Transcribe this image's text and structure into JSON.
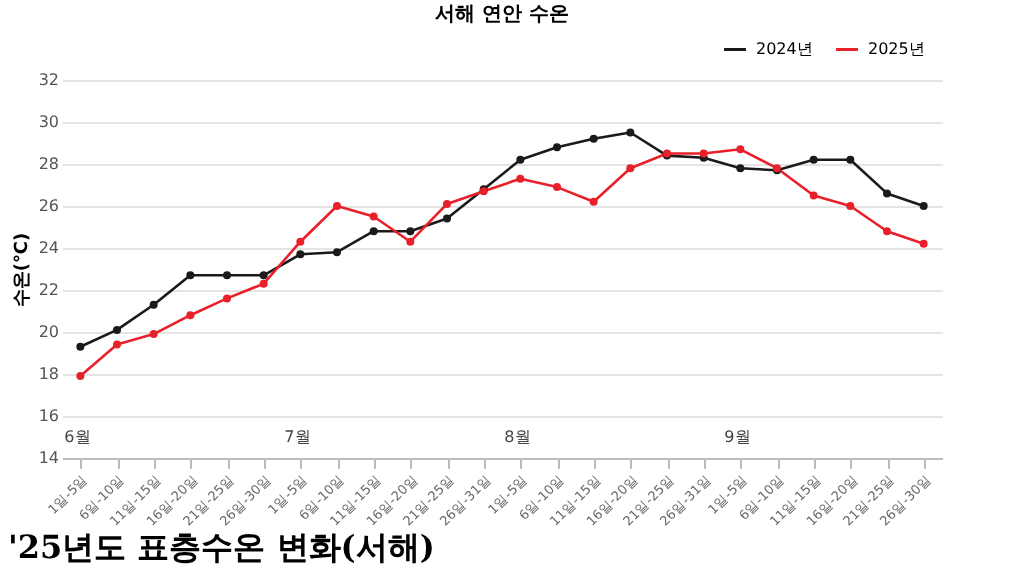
{
  "chart_data": {
    "type": "line",
    "title": "서해 연안 수온",
    "ylabel": "수온(℃)",
    "categories": [
      "1일-5일",
      "6일-10일",
      "11일-15일",
      "16일-20일",
      "21일-25일",
      "26일-30일",
      "1일-5일",
      "6일-10일",
      "11일-15일",
      "16일-20일",
      "21일-25일",
      "26일-31일",
      "1일-5일",
      "6일-10일",
      "11일-15일",
      "16일-20일",
      "21일-25일",
      "26일-31일",
      "1일-5일",
      "6일-10일",
      "11일-15일",
      "16일-20일",
      "21일-25일",
      "26일-30일"
    ],
    "series": [
      {
        "name": "2024년",
        "color": "#1a1a1a",
        "values": [
          19.3,
          20.1,
          21.3,
          22.7,
          22.7,
          22.7,
          23.7,
          23.8,
          24.8,
          24.8,
          25.4,
          26.8,
          28.2,
          28.8,
          29.2,
          29.5,
          28.4,
          28.3,
          27.8,
          27.7,
          28.2,
          28.2,
          26.6,
          26.0
        ]
      },
      {
        "name": "2025년",
        "color": "#e8202a",
        "values": [
          17.9,
          19.4,
          19.9,
          20.8,
          21.6,
          22.3,
          24.3,
          26.0,
          25.5,
          24.3,
          26.1,
          26.7,
          27.3,
          26.9,
          26.2,
          27.8,
          28.5,
          28.5,
          28.7,
          27.8,
          26.5,
          26.0,
          24.8,
          24.2
        ]
      }
    ],
    "ylim": [
      14,
      32
    ],
    "yticks": [
      14,
      16,
      18,
      20,
      22,
      24,
      26,
      28,
      30,
      32
    ],
    "grid": "y",
    "legend": "top right",
    "marker": "circle",
    "line_style": "solid",
    "annotations": [
      "6월",
      "7월",
      "8월",
      "9월",
      "'25년도 표층수온 변화(서해)"
    ]
  }
}
